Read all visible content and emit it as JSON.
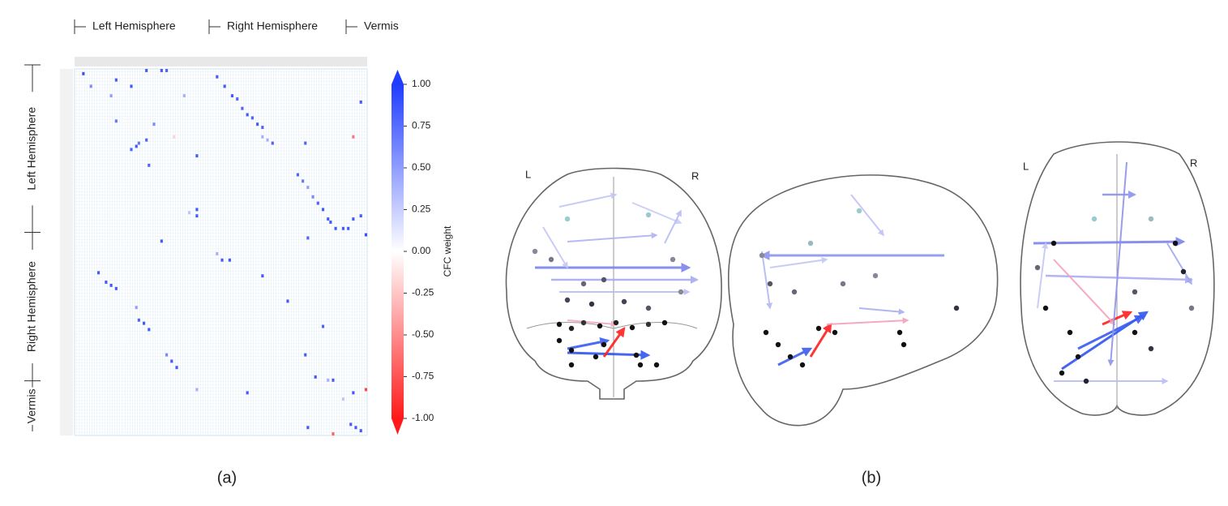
{
  "chart_data": {
    "type": "heatmap",
    "groups": [
      {
        "label": "Left Hemisphere",
        "start": 0,
        "end": 53
      },
      {
        "label": "Right Hemisphere",
        "start": 53,
        "end": 100
      },
      {
        "label": "Vermis",
        "start": 100,
        "end": 116
      }
    ],
    "xlim": [
      0,
      116
    ],
    "ylim": [
      0,
      116
    ],
    "colorbar_label": "CFC weight",
    "zlim": [
      -1,
      1
    ],
    "zticks": [
      {
        "value": 1,
        "label": "1.00"
      },
      {
        "value": 0.75,
        "label": "0.75"
      },
      {
        "value": 0.5,
        "label": "0.50"
      },
      {
        "value": 0.25,
        "label": "0.25"
      },
      {
        "value": 0,
        "label": "0.00"
      },
      {
        "value": -0.25,
        "label": "-0.25"
      },
      {
        "value": -0.5,
        "label": "-0.50"
      },
      {
        "value": -0.75,
        "label": "-0.75"
      },
      {
        "value": -1,
        "label": "-1.00"
      }
    ],
    "colors": {
      "min": "#ff1a1a",
      "mid": "#ffffff",
      "max": "#1f3cff"
    },
    "cells": [
      {
        "x": 3,
        "y": 1,
        "value": 0.9
      },
      {
        "x": 28,
        "y": 0,
        "value": 0.85
      },
      {
        "x": 34,
        "y": 0,
        "value": 0.85
      },
      {
        "x": 36,
        "y": 0,
        "value": 0.8
      },
      {
        "x": 56,
        "y": 2,
        "value": 0.85
      },
      {
        "x": 6,
        "y": 5,
        "value": 0.6
      },
      {
        "x": 16,
        "y": 3,
        "value": 0.85
      },
      {
        "x": 22,
        "y": 5,
        "value": 0.85
      },
      {
        "x": 14,
        "y": 8,
        "value": 0.5
      },
      {
        "x": 43,
        "y": 8,
        "value": 0.4
      },
      {
        "x": 59,
        "y": 5,
        "value": 0.85
      },
      {
        "x": 62,
        "y": 8,
        "value": 0.85
      },
      {
        "x": 64,
        "y": 9,
        "value": 0.8
      },
      {
        "x": 66,
        "y": 12,
        "value": 0.8
      },
      {
        "x": 68,
        "y": 14,
        "value": 0.85
      },
      {
        "x": 70,
        "y": 15,
        "value": 0.8
      },
      {
        "x": 72,
        "y": 17,
        "value": 0.85
      },
      {
        "x": 74,
        "y": 18,
        "value": 0.8
      },
      {
        "x": 113,
        "y": 10,
        "value": 0.85
      },
      {
        "x": 16,
        "y": 16,
        "value": 0.7
      },
      {
        "x": 31,
        "y": 17,
        "value": 0.6
      },
      {
        "x": 39,
        "y": 21,
        "value": -0.2
      },
      {
        "x": 110,
        "y": 21,
        "value": -0.6
      },
      {
        "x": 28,
        "y": 22,
        "value": 0.8
      },
      {
        "x": 24,
        "y": 24,
        "value": 0.85
      },
      {
        "x": 25,
        "y": 23,
        "value": 0.7
      },
      {
        "x": 22,
        "y": 25,
        "value": 0.8
      },
      {
        "x": 74,
        "y": 21,
        "value": 0.4
      },
      {
        "x": 76,
        "y": 22,
        "value": 0.4
      },
      {
        "x": 78,
        "y": 23,
        "value": 0.8
      },
      {
        "x": 91,
        "y": 23,
        "value": 0.8
      },
      {
        "x": 48,
        "y": 27,
        "value": 0.85
      },
      {
        "x": 29,
        "y": 30,
        "value": 0.8
      },
      {
        "x": 88,
        "y": 33,
        "value": 0.8
      },
      {
        "x": 90,
        "y": 35,
        "value": 0.7
      },
      {
        "x": 92,
        "y": 37,
        "value": 0.5
      },
      {
        "x": 94,
        "y": 40,
        "value": 0.6
      },
      {
        "x": 96,
        "y": 42,
        "value": 0.8
      },
      {
        "x": 98,
        "y": 44,
        "value": 0.85
      },
      {
        "x": 100,
        "y": 47,
        "value": 0.85
      },
      {
        "x": 101,
        "y": 48,
        "value": 0.85
      },
      {
        "x": 103,
        "y": 50,
        "value": 0.85
      },
      {
        "x": 106,
        "y": 50,
        "value": 0.85
      },
      {
        "x": 108,
        "y": 50,
        "value": 0.85
      },
      {
        "x": 110,
        "y": 47,
        "value": 0.85
      },
      {
        "x": 113,
        "y": 46,
        "value": 0.85
      },
      {
        "x": 115,
        "y": 52,
        "value": 0.9
      },
      {
        "x": 45,
        "y": 45,
        "value": 0.3
      },
      {
        "x": 48,
        "y": 44,
        "value": 0.85
      },
      {
        "x": 48,
        "y": 46,
        "value": 0.85
      },
      {
        "x": 92,
        "y": 53,
        "value": 0.8
      },
      {
        "x": 34,
        "y": 54,
        "value": 0.85
      },
      {
        "x": 56,
        "y": 58,
        "value": 0.4
      },
      {
        "x": 58,
        "y": 60,
        "value": 0.85
      },
      {
        "x": 61,
        "y": 60,
        "value": 0.85
      },
      {
        "x": 9,
        "y": 64,
        "value": 0.85
      },
      {
        "x": 74,
        "y": 65,
        "value": 0.85
      },
      {
        "x": 12,
        "y": 67,
        "value": 0.85
      },
      {
        "x": 14,
        "y": 68,
        "value": 0.85
      },
      {
        "x": 16,
        "y": 69,
        "value": 0.85
      },
      {
        "x": 24,
        "y": 75,
        "value": 0.5
      },
      {
        "x": 25,
        "y": 79,
        "value": 0.8
      },
      {
        "x": 27,
        "y": 80,
        "value": 0.85
      },
      {
        "x": 29,
        "y": 82,
        "value": 0.85
      },
      {
        "x": 84,
        "y": 73,
        "value": 0.85
      },
      {
        "x": 98,
        "y": 81,
        "value": 0.8
      },
      {
        "x": 36,
        "y": 90,
        "value": 0.6
      },
      {
        "x": 38,
        "y": 92,
        "value": 0.85
      },
      {
        "x": 40,
        "y": 94,
        "value": 0.85
      },
      {
        "x": 91,
        "y": 90,
        "value": 0.85
      },
      {
        "x": 95,
        "y": 97,
        "value": 0.85
      },
      {
        "x": 100,
        "y": 98,
        "value": 0.4
      },
      {
        "x": 102,
        "y": 98,
        "value": 0.85
      },
      {
        "x": 115,
        "y": 101,
        "value": -0.8
      },
      {
        "x": 48,
        "y": 101,
        "value": 0.4
      },
      {
        "x": 68,
        "y": 102,
        "value": 0.85
      },
      {
        "x": 106,
        "y": 104,
        "value": 0.3
      },
      {
        "x": 110,
        "y": 102,
        "value": 0.85
      },
      {
        "x": 109,
        "y": 112,
        "value": 0.85
      },
      {
        "x": 111,
        "y": 113,
        "value": 0.85
      },
      {
        "x": 92,
        "y": 113,
        "value": 0.85
      },
      {
        "x": 113,
        "y": 114,
        "value": 0.85
      },
      {
        "x": 102,
        "y": 115,
        "value": -0.7
      }
    ]
  },
  "caption_a": "(a)",
  "caption_b": "(b)",
  "brain_views": [
    {
      "left": "L",
      "right": "R"
    },
    {
      "left": "L",
      "right": "R"
    }
  ]
}
